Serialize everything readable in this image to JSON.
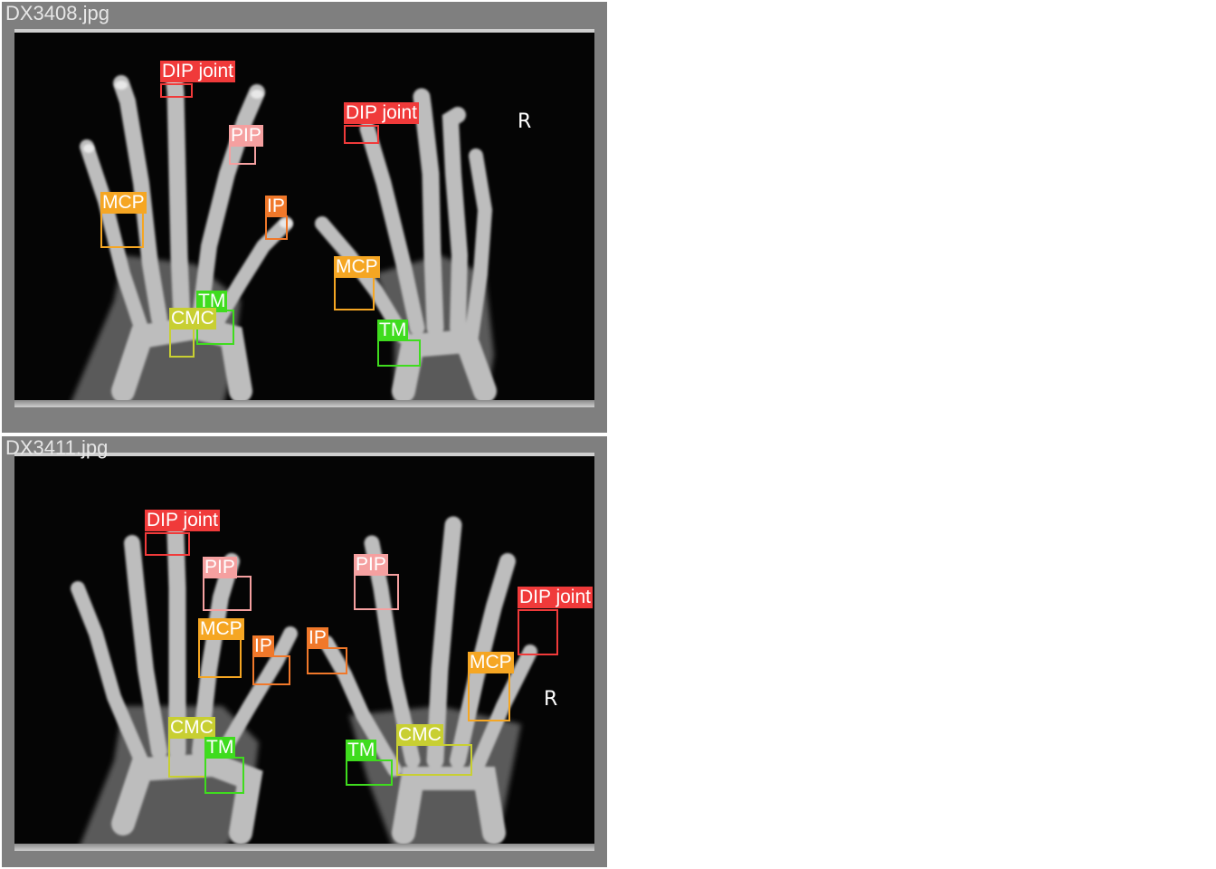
{
  "images": [
    {
      "filename": "DX3408.jpg",
      "side_marker": "R",
      "annotations": [
        {
          "label": "DIP joint",
          "color": "#f03a3a"
        },
        {
          "label": "PIP",
          "color": "#f5a0a0"
        },
        {
          "label": "MCP",
          "color": "#f5a623"
        },
        {
          "label": "IP",
          "color": "#f0782a"
        },
        {
          "label": "TM",
          "color": "#3fdc1e"
        },
        {
          "label": "CMC",
          "color": "#c8cf32"
        },
        {
          "label": "DIP joint",
          "color": "#f03a3a"
        },
        {
          "label": "MCP",
          "color": "#f5a623"
        },
        {
          "label": "TM",
          "color": "#3fdc1e"
        }
      ]
    },
    {
      "filename": "DX3411.jpg",
      "side_marker": "R",
      "annotations": [
        {
          "label": "DIP joint",
          "color": "#f03a3a"
        },
        {
          "label": "PIP",
          "color": "#f5a0a0"
        },
        {
          "label": "MCP",
          "color": "#f5a623"
        },
        {
          "label": "IP",
          "color": "#f0782a"
        },
        {
          "label": "IP",
          "color": "#f0782a"
        },
        {
          "label": "CMC",
          "color": "#c8cf32"
        },
        {
          "label": "TM",
          "color": "#3fdc1e"
        },
        {
          "label": "PIP",
          "color": "#f5a0a0"
        },
        {
          "label": "DIP joint",
          "color": "#f03a3a"
        },
        {
          "label": "MCP",
          "color": "#f5a623"
        },
        {
          "label": "TM",
          "color": "#3fdc1e"
        },
        {
          "label": "CMC",
          "color": "#c8cf32"
        }
      ]
    }
  ]
}
